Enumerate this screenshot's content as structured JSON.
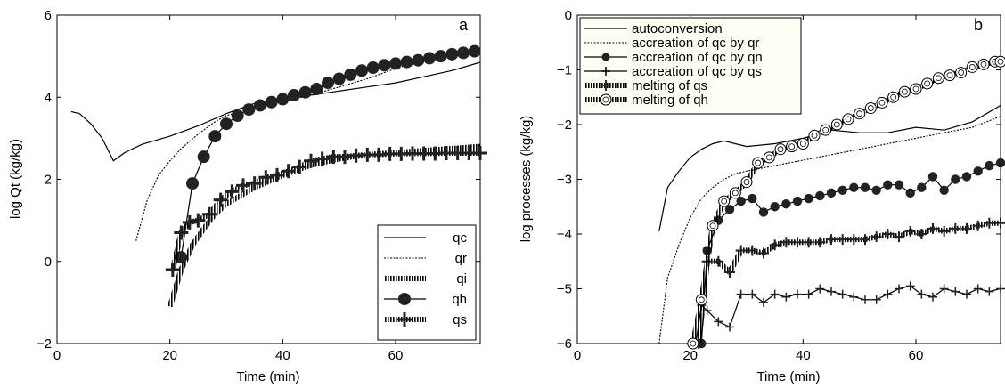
{
  "chart_data": [
    {
      "type": "line",
      "panel_label": "a",
      "xlabel": "Time (min)",
      "ylabel": "log Qt (kg/kg)",
      "xlim": [
        0,
        75
      ],
      "ylim": [
        -2,
        6
      ],
      "xticks": [
        "0",
        "20",
        "40",
        "60"
      ],
      "yticks": [
        "−2",
        "0",
        "2",
        "4",
        "6"
      ],
      "legend_position": "lower-right",
      "series": [
        {
          "name": "qc",
          "style": "solid",
          "x": [
            2.5,
            4,
            6,
            8,
            10,
            12,
            15,
            20,
            25,
            30,
            35,
            40,
            45,
            50,
            55,
            60,
            65,
            70,
            75
          ],
          "y": [
            3.65,
            3.6,
            3.35,
            3.0,
            2.45,
            2.65,
            2.85,
            3.05,
            3.3,
            3.6,
            3.85,
            3.95,
            4.05,
            4.15,
            4.25,
            4.35,
            4.5,
            4.65,
            4.85
          ]
        },
        {
          "name": "qr",
          "style": "dashed",
          "x": [
            14,
            16,
            18,
            20,
            22,
            25,
            28,
            30,
            35,
            40,
            45,
            50,
            55,
            60,
            65,
            70,
            75
          ],
          "y": [
            0.5,
            1.5,
            2.1,
            2.45,
            2.75,
            3.1,
            3.4,
            3.55,
            3.75,
            3.9,
            4.05,
            4.25,
            4.45,
            4.7,
            4.9,
            5.0,
            5.1
          ]
        },
        {
          "name": "qi",
          "style": "hatched",
          "x": [
            20,
            22,
            24,
            26,
            28,
            30,
            35,
            40,
            45,
            50,
            55,
            60,
            65,
            70,
            75
          ],
          "y": [
            -1.1,
            -0.2,
            0.4,
            0.8,
            1.15,
            1.4,
            1.8,
            2.1,
            2.35,
            2.5,
            2.6,
            2.65,
            2.7,
            2.75,
            2.8
          ]
        },
        {
          "name": "qh",
          "style": "solid-circle",
          "x": [
            22,
            24,
            26,
            28,
            30,
            32,
            34,
            36,
            38,
            40,
            42,
            44,
            46,
            48,
            50,
            52,
            54,
            56,
            58,
            60,
            62,
            64,
            66,
            68,
            70,
            72,
            74
          ],
          "y": [
            0.1,
            1.9,
            2.55,
            3.05,
            3.35,
            3.55,
            3.7,
            3.8,
            3.88,
            3.95,
            4.05,
            4.12,
            4.2,
            4.35,
            4.45,
            4.55,
            4.65,
            4.72,
            4.78,
            4.82,
            4.86,
            4.9,
            4.95,
            5.0,
            5.05,
            5.08,
            5.12
          ]
        },
        {
          "name": "qs",
          "style": "hatched-plus",
          "x": [
            20.5,
            22,
            23.5,
            25,
            27,
            29,
            31,
            33,
            35,
            37,
            39,
            41,
            43,
            45,
            47,
            49,
            51,
            53,
            55,
            57,
            59,
            61,
            63,
            65,
            67,
            69,
            71,
            73,
            75
          ],
          "y": [
            -0.2,
            0.7,
            0.95,
            1.0,
            1.15,
            1.5,
            1.7,
            1.85,
            1.9,
            2.05,
            2.1,
            2.2,
            2.3,
            2.45,
            2.5,
            2.55,
            2.55,
            2.58,
            2.6,
            2.6,
            2.62,
            2.62,
            2.63,
            2.63,
            2.63,
            2.64,
            2.64,
            2.64,
            2.64
          ]
        }
      ]
    },
    {
      "type": "line",
      "panel_label": "b",
      "xlabel": "Time (min)",
      "ylabel": "log processes (kg/kg)",
      "xlim": [
        0,
        75
      ],
      "ylim": [
        -6,
        0
      ],
      "xticks": [
        "0",
        "20",
        "40",
        "60"
      ],
      "yticks": [
        "−6",
        "−5",
        "−4",
        "−3",
        "−2",
        "−1",
        "0"
      ],
      "legend_position": "top-left",
      "series": [
        {
          "name": "autoconversion",
          "style": "solid",
          "x": [
            14.5,
            16,
            18,
            20,
            22,
            24,
            26,
            28,
            30,
            35,
            40,
            45,
            50,
            55,
            60,
            65,
            70,
            75
          ],
          "y": [
            -3.95,
            -3.15,
            -2.85,
            -2.6,
            -2.45,
            -2.35,
            -2.3,
            -2.35,
            -2.4,
            -2.35,
            -2.25,
            -2.1,
            -2.15,
            -2.15,
            -2.05,
            -2.1,
            -1.95,
            -1.65
          ]
        },
        {
          "name": "accreation of qc by qr",
          "style": "dashed",
          "x": [
            14.5,
            16,
            18,
            20,
            22,
            24,
            26,
            28,
            30,
            35,
            40,
            45,
            50,
            55,
            60,
            65,
            70,
            75
          ],
          "y": [
            -6.0,
            -4.8,
            -4.2,
            -3.7,
            -3.35,
            -3.15,
            -3.0,
            -2.9,
            -2.85,
            -2.75,
            -2.65,
            -2.55,
            -2.45,
            -2.35,
            -2.25,
            -2.15,
            -2.05,
            -1.85
          ]
        },
        {
          "name": "accreation of qc by qn",
          "style": "solid-circle",
          "x": [
            22,
            23,
            25,
            27,
            29,
            31,
            33,
            35,
            37,
            39,
            41,
            43,
            45,
            47,
            49,
            51,
            53,
            55,
            57,
            59,
            61,
            63,
            65,
            67,
            69,
            71,
            73,
            75
          ],
          "y": [
            -6.0,
            -4.3,
            -3.75,
            -3.55,
            -3.4,
            -3.35,
            -3.6,
            -3.5,
            -3.45,
            -3.4,
            -3.35,
            -3.3,
            -3.25,
            -3.2,
            -3.15,
            -3.15,
            -3.2,
            -3.1,
            -3.1,
            -3.25,
            -3.15,
            -2.95,
            -3.2,
            -3.0,
            -2.95,
            -2.85,
            -2.75,
            -2.7
          ]
        },
        {
          "name": "accreation of qc by qs",
          "style": "solid-plus",
          "x": [
            21,
            22,
            23,
            25,
            27,
            29,
            31,
            33,
            35,
            37,
            39,
            41,
            43,
            45,
            47,
            49,
            51,
            53,
            55,
            57,
            59,
            61,
            63,
            65,
            67,
            69,
            71,
            73,
            75
          ],
          "y": [
            -6.0,
            -5.3,
            -5.4,
            -5.6,
            -5.7,
            -5.1,
            -5.1,
            -5.25,
            -5.1,
            -5.15,
            -5.1,
            -5.1,
            -5.0,
            -5.05,
            -5.1,
            -5.15,
            -5.2,
            -5.2,
            -5.1,
            -5.0,
            -4.95,
            -5.1,
            -5.15,
            -5.0,
            -5.05,
            -5.1,
            -5.0,
            -5.05,
            -5.0
          ]
        },
        {
          "name": "melting of qs",
          "style": "hatched-plus",
          "x": [
            21.5,
            23,
            25,
            27,
            29,
            31,
            33,
            35,
            37,
            39,
            41,
            43,
            45,
            47,
            49,
            51,
            53,
            55,
            57,
            59,
            61,
            63,
            65,
            67,
            69,
            71,
            73,
            75
          ],
          "y": [
            -6.0,
            -4.5,
            -4.5,
            -4.7,
            -4.3,
            -4.3,
            -4.35,
            -4.2,
            -4.15,
            -4.15,
            -4.15,
            -4.15,
            -4.1,
            -4.1,
            -4.1,
            -4.1,
            -4.05,
            -4.0,
            -4.05,
            -3.95,
            -4.0,
            -3.9,
            -3.95,
            -3.9,
            -3.9,
            -3.85,
            -3.8,
            -3.8
          ]
        },
        {
          "name": "melting of qh",
          "style": "hatched-circle",
          "x": [
            20.5,
            22,
            24,
            26,
            28,
            30,
            32,
            34,
            36,
            38,
            40,
            42,
            44,
            46,
            48,
            50,
            52,
            54,
            56,
            58,
            60,
            62,
            64,
            66,
            68,
            70,
            72,
            74,
            75
          ],
          "y": [
            -6.0,
            -5.2,
            -3.85,
            -3.4,
            -3.25,
            -3.05,
            -2.7,
            -2.6,
            -2.45,
            -2.4,
            -2.35,
            -2.2,
            -2.1,
            -2.0,
            -1.9,
            -1.8,
            -1.7,
            -1.6,
            -1.5,
            -1.4,
            -1.35,
            -1.25,
            -1.15,
            -1.1,
            -1.05,
            -0.95,
            -0.9,
            -0.85,
            -0.85
          ]
        }
      ]
    }
  ]
}
